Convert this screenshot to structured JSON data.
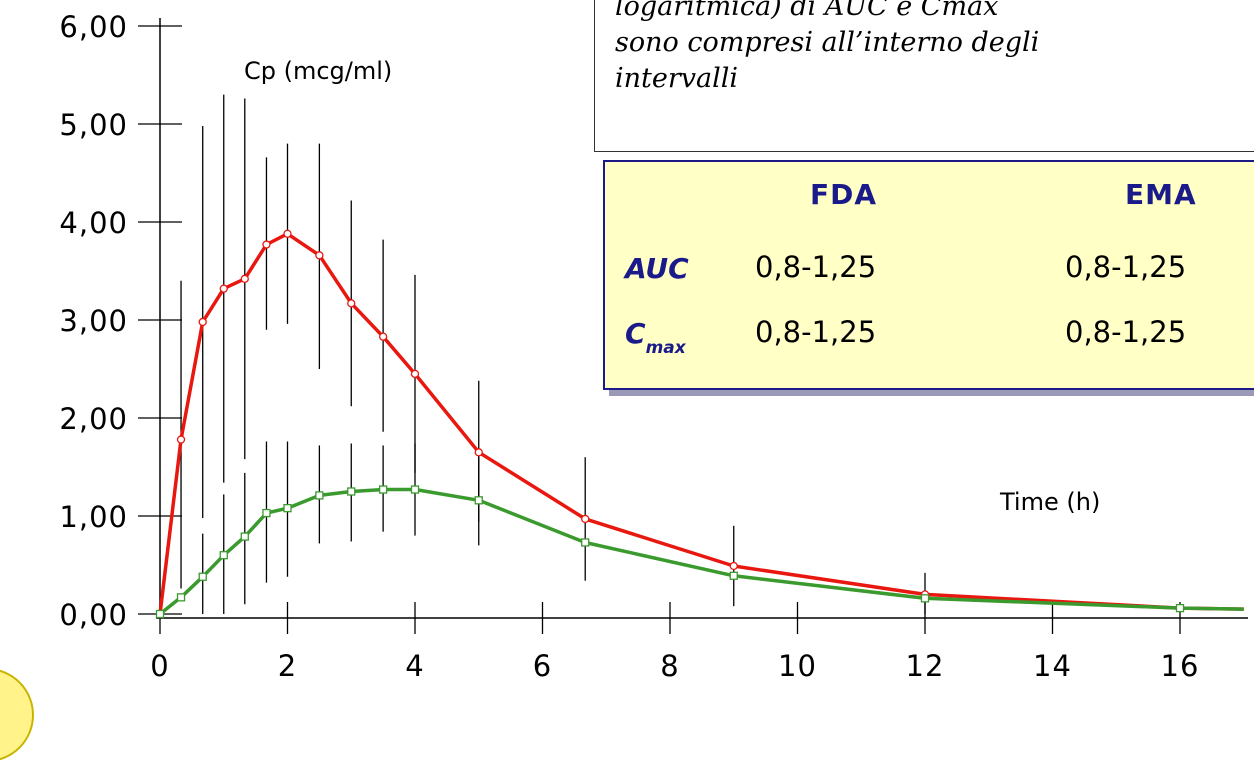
{
  "chart_data": {
    "type": "line",
    "y_axis_title": "Cp (mcg/ml)",
    "x_axis_title": "Time (h)",
    "xlim": [
      0,
      17
    ],
    "ylim": [
      0,
      6
    ],
    "x_ticks": [
      0,
      2,
      4,
      6,
      8,
      10,
      12,
      14,
      16
    ],
    "y_ticks": [
      "0,00",
      "1,00",
      "2,00",
      "3,00",
      "4,00",
      "5,00",
      "6,00"
    ],
    "grid": false,
    "series": [
      {
        "color": "#e8170f",
        "marker": "circle",
        "points": [
          {
            "x": 0,
            "y": 0.0
          },
          {
            "x": 0.33,
            "y": 1.78,
            "lo": 0.26,
            "hi": 3.4
          },
          {
            "x": 0.67,
            "y": 2.98,
            "lo": 0.98,
            "hi": 4.98
          },
          {
            "x": 1.0,
            "y": 3.32,
            "lo": 1.34,
            "hi": 5.3
          },
          {
            "x": 1.33,
            "y": 3.42,
            "lo": 1.58,
            "hi": 5.26
          },
          {
            "x": 1.67,
            "y": 3.77,
            "lo": 2.9,
            "hi": 4.66
          },
          {
            "x": 2.0,
            "y": 3.88,
            "lo": 2.96,
            "hi": 4.8
          },
          {
            "x": 2.5,
            "y": 3.66,
            "lo": 2.5,
            "hi": 4.8
          },
          {
            "x": 3.0,
            "y": 3.17,
            "lo": 2.12,
            "hi": 4.22
          },
          {
            "x": 3.5,
            "y": 2.83,
            "lo": 1.86,
            "hi": 3.82
          },
          {
            "x": 4.0,
            "y": 2.45,
            "lo": 1.44,
            "hi": 3.46
          },
          {
            "x": 5.0,
            "y": 1.65,
            "lo": 0.94,
            "hi": 2.38
          },
          {
            "x": 6.67,
            "y": 0.97,
            "lo": 0.34,
            "hi": 1.6
          },
          {
            "x": 9.0,
            "y": 0.49,
            "lo": 0.08,
            "hi": 0.9
          },
          {
            "x": 12.0,
            "y": 0.2,
            "lo": 0.0,
            "hi": 0.42
          },
          {
            "x": 16.0,
            "y": 0.06
          },
          {
            "x": 17.0,
            "y": 0.05
          }
        ]
      },
      {
        "color": "#3a9a2e",
        "marker": "square",
        "points": [
          {
            "x": 0,
            "y": 0.0
          },
          {
            "x": 0.33,
            "y": 0.17
          },
          {
            "x": 0.67,
            "y": 0.38,
            "lo": 0.0,
            "hi": 0.82
          },
          {
            "x": 1.0,
            "y": 0.6,
            "lo": 0.0,
            "hi": 1.22
          },
          {
            "x": 1.33,
            "y": 0.79,
            "lo": 0.1,
            "hi": 1.44
          },
          {
            "x": 1.67,
            "y": 1.03,
            "lo": 0.32,
            "hi": 1.76
          },
          {
            "x": 2.0,
            "y": 1.08,
            "lo": 0.38,
            "hi": 1.76
          },
          {
            "x": 2.5,
            "y": 1.21,
            "lo": 0.72,
            "hi": 1.72
          },
          {
            "x": 3.0,
            "y": 1.25,
            "lo": 0.74,
            "hi": 1.74
          },
          {
            "x": 3.5,
            "y": 1.27,
            "lo": 0.84,
            "hi": 1.72
          },
          {
            "x": 4.0,
            "y": 1.27,
            "lo": 0.8,
            "hi": 1.74
          },
          {
            "x": 5.0,
            "y": 1.16,
            "lo": 0.7,
            "hi": 1.62
          },
          {
            "x": 6.67,
            "y": 0.73
          },
          {
            "x": 9.0,
            "y": 0.39
          },
          {
            "x": 12.0,
            "y": 0.16
          },
          {
            "x": 16.0,
            "y": 0.06
          },
          {
            "x": 17.0,
            "y": 0.05
          }
        ]
      }
    ]
  },
  "note": {
    "line1": "logaritmica) di AUC e Cmax",
    "line2": "sono compresi all’interno degli",
    "line3": "intervalli"
  },
  "limits_table": {
    "col1": "FDA",
    "col2": "EMA",
    "row1": {
      "label": "AUC",
      "fda": "0,8-1,25",
      "ema": "0,8-1,25"
    },
    "row2": {
      "label": "C",
      "label_sub": "max",
      "fda": "0,8-1,25",
      "ema": "0,8-1,25"
    }
  }
}
